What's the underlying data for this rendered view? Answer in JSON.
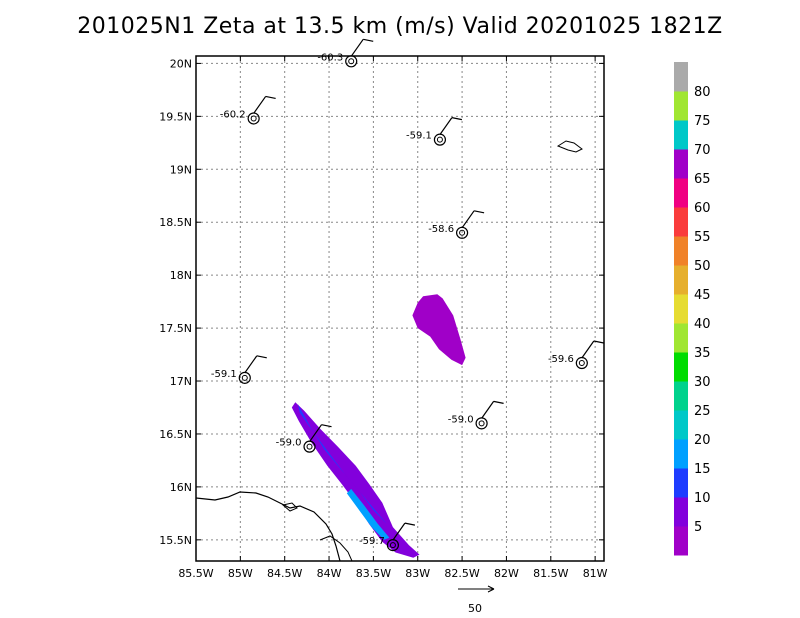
{
  "chart_data": {
    "type": "heatmap",
    "title": "201025N1  Zeta at 13.5 km (m/s) Valid 20201025  1821Z",
    "x_axis": {
      "range": [
        -85.5,
        -80.9
      ],
      "ticks": [
        -85.5,
        -85,
        -84.5,
        -84,
        -83.5,
        -83,
        -82.5,
        -82,
        -81.5,
        -81
      ],
      "tick_labels": [
        "85.5W",
        "85W",
        "84.5W",
        "84W",
        "83.5W",
        "83W",
        "82.5W",
        "82W",
        "81.5W",
        "81W"
      ]
    },
    "y_axis": {
      "range": [
        15.3,
        20.07
      ],
      "ticks": [
        15.5,
        16,
        16.5,
        17,
        17.5,
        18,
        18.5,
        19,
        19.5,
        20
      ],
      "tick_labels": [
        "15.5N",
        "16N",
        "16.5N",
        "17N",
        "17.5N",
        "18N",
        "18.5N",
        "19N",
        "19.5N",
        "20N"
      ]
    },
    "grid": true,
    "colorbar": {
      "levels": [
        5,
        10,
        15,
        20,
        25,
        30,
        35,
        40,
        45,
        50,
        55,
        60,
        65,
        70,
        75,
        80
      ],
      "colors": [
        "#a000c8",
        "#8200dc",
        "#1e3cff",
        "#00a0ff",
        "#00c8c8",
        "#00d28c",
        "#00dc00",
        "#a0e632",
        "#e6dc32",
        "#e6af2d",
        "#f08228",
        "#fa3c3c",
        "#f00082",
        "#a000c8",
        "#00c8c8",
        "#a0e632",
        "#aaaaaa"
      ]
    },
    "station_points": [
      {
        "lon": -83.75,
        "lat": 20.02,
        "value": "-60.3"
      },
      {
        "lon": -84.85,
        "lat": 19.48,
        "value": "-60.2"
      },
      {
        "lon": -82.75,
        "lat": 19.28,
        "value": "-59.1"
      },
      {
        "lon": -82.5,
        "lat": 18.4,
        "value": "-58.6"
      },
      {
        "lon": -84.95,
        "lat": 17.03,
        "value": "-59.1"
      },
      {
        "lon": -81.15,
        "lat": 17.17,
        "value": "-59.6"
      },
      {
        "lon": -82.28,
        "lat": 16.6,
        "value": "-59.0"
      },
      {
        "lon": -84.22,
        "lat": 16.38,
        "value": "-59.0"
      },
      {
        "lon": -83.28,
        "lat": 15.45,
        "value": "-59.7"
      }
    ],
    "vector_reference": "50"
  }
}
